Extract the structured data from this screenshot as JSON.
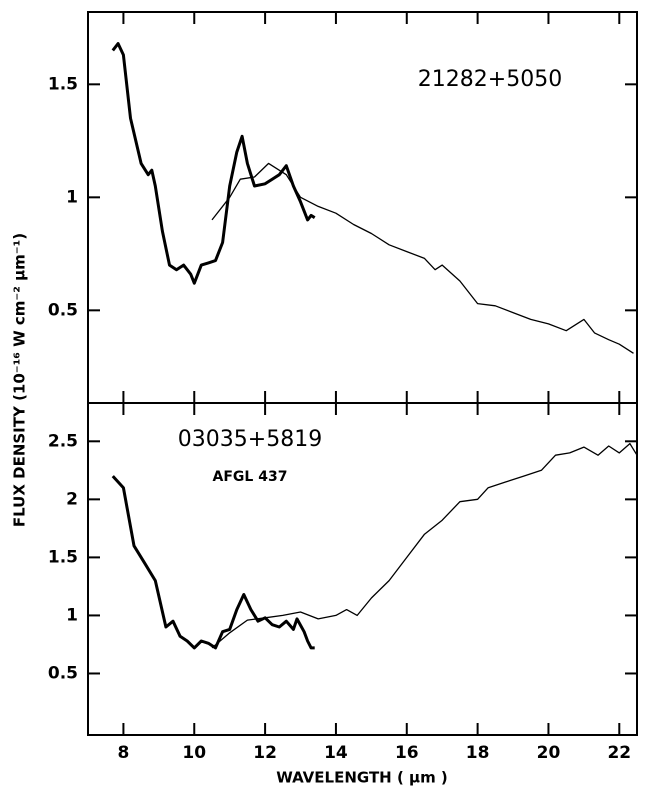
{
  "chart_data": [
    {
      "type": "line",
      "y_label": "FLUX DENSITY  (10⁻¹⁶ W cm⁻² μm⁻¹)",
      "annotations": [
        "21282+5050"
      ],
      "xlim": [
        7,
        22.5
      ],
      "ylim": [
        0.09,
        1.82
      ],
      "yticks": [
        1.5,
        1,
        0.5
      ],
      "series": [
        {
          "color": "#000000",
          "linewidth": 3,
          "x": [
            7.7,
            7.85,
            8.0,
            8.2,
            8.5,
            8.7,
            8.8,
            8.9,
            9.1,
            9.3,
            9.5,
            9.7,
            9.9,
            10.0,
            10.2,
            10.4,
            10.6,
            10.8,
            11.0,
            11.2,
            11.35,
            11.5,
            11.7,
            12.0,
            12.2,
            12.4,
            12.6,
            12.8,
            13.0,
            13.2,
            13.3,
            13.4
          ],
          "values": [
            1.65,
            1.68,
            1.63,
            1.35,
            1.15,
            1.1,
            1.12,
            1.05,
            0.85,
            0.7,
            0.68,
            0.7,
            0.66,
            0.62,
            0.7,
            0.71,
            0.72,
            0.8,
            1.05,
            1.2,
            1.27,
            1.15,
            1.05,
            1.06,
            1.08,
            1.1,
            1.14,
            1.05,
            0.98,
            0.9,
            0.92,
            0.91
          ]
        },
        {
          "color": "#000000",
          "linewidth": 1.3,
          "x": [
            10.5,
            11.0,
            11.3,
            11.7,
            12.1,
            12.6,
            13.0,
            13.5,
            14,
            14.5,
            15,
            15.5,
            16,
            16.5,
            16.8,
            17,
            17.5,
            18,
            18.5,
            19,
            19.5,
            20,
            20.5,
            21,
            21.3,
            21.7,
            22,
            22.4
          ],
          "values": [
            0.9,
            1.0,
            1.08,
            1.09,
            1.15,
            1.1,
            1.0,
            0.96,
            0.93,
            0.88,
            0.84,
            0.79,
            0.76,
            0.73,
            0.68,
            0.7,
            0.63,
            0.53,
            0.52,
            0.49,
            0.46,
            0.44,
            0.41,
            0.46,
            0.4,
            0.37,
            0.35,
            0.31
          ]
        }
      ]
    },
    {
      "type": "line",
      "x_label": "WAVELENGTH ( μm )",
      "annotations": [
        "03035+5819",
        "AFGL 437"
      ],
      "xlim": [
        7,
        22.5
      ],
      "ylim": [
        -0.03,
        2.83
      ],
      "xticks": [
        8,
        10,
        12,
        14,
        16,
        18,
        20,
        22
      ],
      "yticks": [
        2.5,
        2,
        1.5,
        1,
        0.5
      ],
      "series": [
        {
          "color": "#000000",
          "linewidth": 3,
          "x": [
            7.7,
            8.0,
            8.3,
            8.6,
            8.9,
            9.2,
            9.4,
            9.6,
            9.8,
            10.0,
            10.2,
            10.4,
            10.6,
            10.8,
            11.0,
            11.2,
            11.4,
            11.6,
            11.8,
            12.0,
            12.2,
            12.4,
            12.6,
            12.8,
            12.9,
            13.1,
            13.2,
            13.3,
            13.4
          ],
          "values": [
            2.2,
            2.1,
            1.6,
            1.45,
            1.3,
            0.9,
            0.95,
            0.82,
            0.78,
            0.72,
            0.78,
            0.76,
            0.72,
            0.86,
            0.88,
            1.05,
            1.18,
            1.05,
            0.95,
            0.98,
            0.92,
            0.9,
            0.95,
            0.88,
            0.97,
            0.86,
            0.78,
            0.72,
            0.72
          ]
        },
        {
          "color": "#000000",
          "linewidth": 1.3,
          "x": [
            10.5,
            11.0,
            11.5,
            12,
            12.5,
            13,
            13.5,
            14,
            14.3,
            14.6,
            15,
            15.5,
            16,
            16.5,
            17,
            17.5,
            18,
            18.3,
            18.8,
            19.3,
            19.8,
            20.2,
            20.6,
            21,
            21.4,
            21.7,
            22.0,
            22.3,
            22.5
          ],
          "values": [
            0.72,
            0.85,
            0.96,
            0.98,
            1.0,
            1.03,
            0.97,
            1.0,
            1.05,
            1.0,
            1.15,
            1.3,
            1.5,
            1.7,
            1.82,
            1.98,
            2.0,
            2.1,
            2.15,
            2.2,
            2.25,
            2.38,
            2.4,
            2.45,
            2.38,
            2.46,
            2.4,
            2.48,
            2.38
          ]
        }
      ]
    }
  ]
}
